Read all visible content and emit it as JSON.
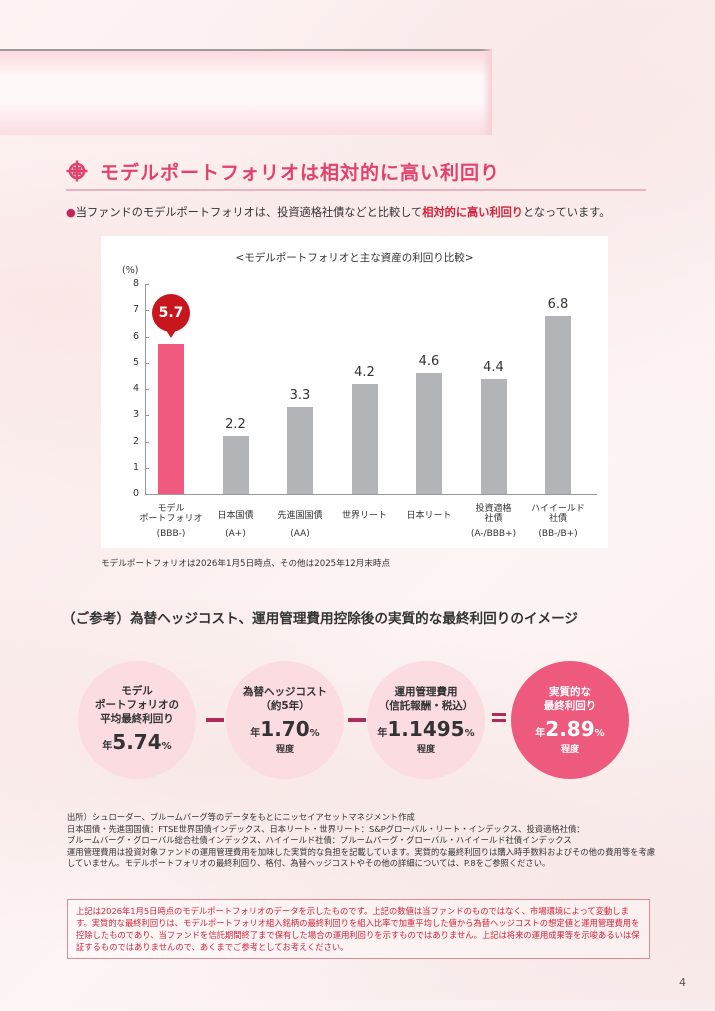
{
  "section": {
    "icon": "target-crosshair-icon",
    "title": "モデルポートフォリオは相対的に高い利回り",
    "lead_prefix": "当ファンドのモデルポートフォリオは、投資適格社債などと比較して",
    "lead_highlight": "相対的に高い利回り",
    "lead_suffix": "となっています。",
    "bullet": "●"
  },
  "chart_data": {
    "type": "bar",
    "title": "<モデルポートフォリオと主な資産の利回り比較>",
    "ylabel": "(%)",
    "xlabel": "",
    "ylim": [
      0,
      8
    ],
    "yticks": [
      "0",
      "1",
      "2",
      "3",
      "4",
      "5",
      "6",
      "7",
      "8"
    ],
    "grid": false,
    "legend": null,
    "categories": [
      {
        "line1": "モデル",
        "line2": "ポートフォリオ",
        "rating": "(BBB-)"
      },
      {
        "line1": "日本国債",
        "line2": "",
        "rating": "(A+)"
      },
      {
        "line1": "先進国国債",
        "line2": "",
        "rating": "(AA)"
      },
      {
        "line1": "世界リート",
        "line2": "",
        "rating": ""
      },
      {
        "line1": "日本リート",
        "line2": "",
        "rating": ""
      },
      {
        "line1": "投資適格",
        "line2": "社債",
        "rating": "(A-/BBB+)"
      },
      {
        "line1": "ハイイールド",
        "line2": "社債",
        "rating": "(BB-/B+)"
      }
    ],
    "values": [
      5.7,
      2.2,
      3.3,
      4.2,
      4.6,
      4.4,
      6.8
    ],
    "value_labels": [
      "5.7",
      "2.2",
      "3.3",
      "4.2",
      "4.6",
      "4.4",
      "6.8"
    ],
    "colors": [
      "#ef5a7e",
      "#b3b4b7",
      "#b3b4b7",
      "#b3b4b7",
      "#b3b4b7",
      "#b3b4b7",
      "#b3b4b7"
    ],
    "highlight_marker_color": "#c8161f",
    "note": "モデルポートフォリオは2026年1月5日時点、その他は2025年12月末時点"
  },
  "reference": {
    "title": "（ご参考）為替ヘッジコスト、運用管理費用控除後の実質的な最終利回りのイメージ",
    "items": [
      {
        "label_lines": [
          "モデル",
          "ポートフォリオの",
          "平均最終利回り"
        ],
        "prefix": "年",
        "value": "5.74",
        "suffix": "%",
        "approx": ""
      },
      {
        "label_lines": [
          "為替ヘッジコスト",
          "（約5年）"
        ],
        "prefix": "年",
        "value": "1.70",
        "suffix": "%",
        "approx": "程度"
      },
      {
        "label_lines": [
          "運用管理費用",
          "（信託報酬・税込）"
        ],
        "prefix": "年",
        "value": "1.1495",
        "suffix": "%",
        "approx": "程度"
      },
      {
        "label_lines": [
          "実質的な",
          "最終利回り"
        ],
        "prefix": "年",
        "value": "2.89",
        "suffix": "%",
        "approx": "程度"
      }
    ],
    "operators": [
      "minus",
      "minus",
      "equals"
    ]
  },
  "sources": [
    "出所）シュローダー、ブルームバーグ等のデータをもとにニッセイアセットマネジメント作成",
    "日本国債・先進国国債：FTSE世界国債インデックス、日本リート・世界リート：S&Pグローバル・リート・インデックス、投資適格社債：",
    "ブルームバーグ・グローバル総合社債インデックス、ハイイールド社債：ブルームバーグ・グローバル・ハイイールド社債インデックス",
    "運用管理費用は投資対象ファンドの運用管理費用を加味した実質的な負担を記載しています。実質的な最終利回りは購入時手数料およびその他の費用等を考慮していません。モデルポートフォリオの最終利回り、格付、為替ヘッジコストやその他の詳細については、P.8をご参照ください。"
  ],
  "disclaimer": "上記は2026年1月5日時点のモデルポートフォリオのデータを示したものです。上記の数値は当ファンドのものではなく、市場環境によって変動します。実質的な最終利回りは、モデルポートフォリオ組入銘柄の最終利回りを組入比率で加重平均した値から為替ヘッジコストの想定値と運用管理費用を控除したものであり、当ファンドを信託期間終了まで保有した場合の運用利回りを示すものではありません。上記は将来の運用成果等を示唆あるいは保証するものではありませんので、あくまでご参考としてお考えください。",
  "page_number": "4"
}
